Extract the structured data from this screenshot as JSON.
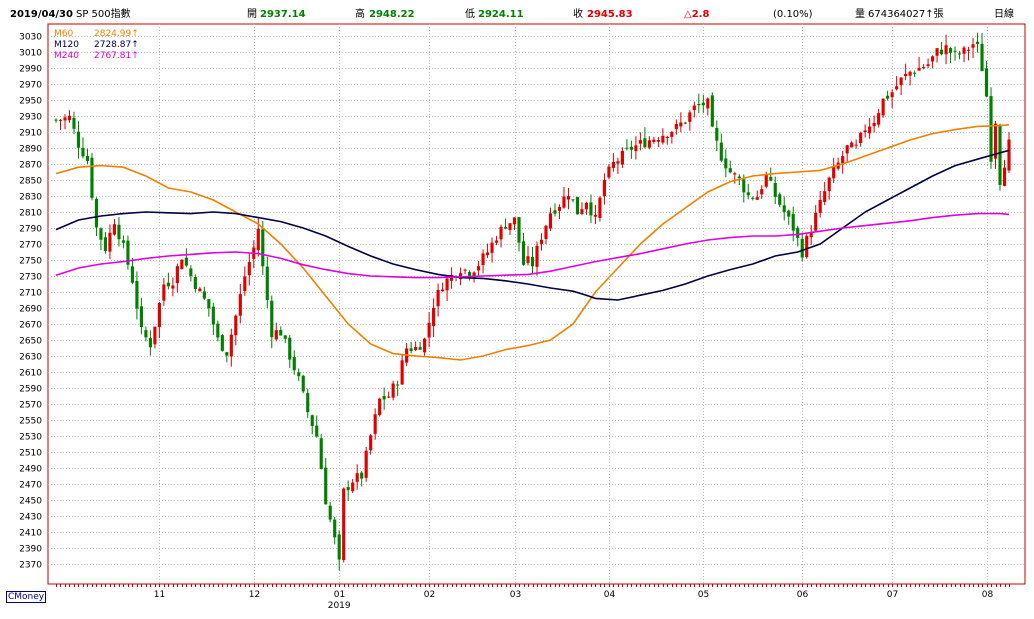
{
  "header": {
    "date": "2019/04/30",
    "symbol": "SP 500指數",
    "open_label": "開",
    "open": "2937.14",
    "high_label": "高",
    "high": "2948.22",
    "low_label": "低",
    "low": "2924.11",
    "close_label": "收",
    "close": "2945.83",
    "change": "△2.8",
    "change_pct": "(0.10%)",
    "volume_label": "量",
    "volume": "674364027↑張",
    "period": "日線"
  },
  "legend": [
    {
      "name": "M60",
      "value": "2824.99↑",
      "color": "#f08000"
    },
    {
      "name": "M120",
      "value": "2728.87↑",
      "color": "#000040"
    },
    {
      "name": "M240",
      "value": "2767.81↑",
      "color": "#e000e0"
    }
  ],
  "brand": "CMoney",
  "colors": {
    "up": "#e00000",
    "down": "#008000",
    "grid": "#b8b8b8",
    "frame": "#c00000"
  },
  "chart_data": {
    "type": "candlestick",
    "title": "SP 500指數 日線",
    "yticks": [
      2370,
      2390,
      2410,
      2430,
      2450,
      2470,
      2490,
      2510,
      2530,
      2550,
      2570,
      2590,
      2610,
      2630,
      2650,
      2670,
      2690,
      2710,
      2730,
      2750,
      2770,
      2790,
      2810,
      2830,
      2850,
      2870,
      2890,
      2910,
      2930,
      2950,
      2970,
      2990,
      3010,
      3030
    ],
    "ylim": [
      2345,
      3040
    ],
    "xlim": [
      0,
      212
    ],
    "x_month_ticks": [
      {
        "label": "11",
        "index": 23
      },
      {
        "label": "12",
        "index": 44
      },
      {
        "label": "01",
        "index": 63
      },
      {
        "label": "02",
        "index": 83
      },
      {
        "label": "03",
        "index": 102
      },
      {
        "label": "04",
        "index": 123
      },
      {
        "label": "05",
        "index": 144
      },
      {
        "label": "06",
        "index": 166
      },
      {
        "label": "07",
        "index": 186
      },
      {
        "label": "08",
        "index": 207
      }
    ],
    "year_label": {
      "label": "2019",
      "index": 63
    },
    "close_points": [
      [
        0,
        2925
      ],
      [
        3,
        2928
      ],
      [
        5,
        2895
      ],
      [
        7,
        2875
      ],
      [
        9,
        2790
      ],
      [
        11,
        2765
      ],
      [
        13,
        2800
      ],
      [
        15,
        2765
      ],
      [
        17,
        2725
      ],
      [
        19,
        2660
      ],
      [
        21,
        2645
      ],
      [
        24,
        2720
      ],
      [
        26,
        2725
      ],
      [
        28,
        2755
      ],
      [
        30,
        2730
      ],
      [
        32,
        2710
      ],
      [
        34,
        2690
      ],
      [
        36,
        2650
      ],
      [
        38,
        2635
      ],
      [
        40,
        2680
      ],
      [
        42,
        2730
      ],
      [
        44,
        2765
      ],
      [
        45,
        2790
      ],
      [
        46,
        2740
      ],
      [
        48,
        2660
      ],
      [
        50,
        2660
      ],
      [
        52,
        2630
      ],
      [
        54,
        2600
      ],
      [
        56,
        2560
      ],
      [
        58,
        2530
      ],
      [
        60,
        2450
      ],
      [
        62,
        2400
      ],
      [
        63,
        2370
      ],
      [
        64,
        2460
      ],
      [
        66,
        2475
      ],
      [
        68,
        2480
      ],
      [
        70,
        2530
      ],
      [
        72,
        2575
      ],
      [
        74,
        2580
      ],
      [
        76,
        2600
      ],
      [
        78,
        2640
      ],
      [
        80,
        2640
      ],
      [
        82,
        2650
      ],
      [
        84,
        2695
      ],
      [
        86,
        2720
      ],
      [
        88,
        2730
      ],
      [
        90,
        2740
      ],
      [
        92,
        2735
      ],
      [
        94,
        2745
      ],
      [
        96,
        2760
      ],
      [
        98,
        2780
      ],
      [
        100,
        2795
      ],
      [
        102,
        2800
      ],
      [
        104,
        2745
      ],
      [
        105,
        2748
      ],
      [
        106,
        2745
      ],
      [
        108,
        2780
      ],
      [
        110,
        2810
      ],
      [
        112,
        2820
      ],
      [
        114,
        2835
      ],
      [
        116,
        2810
      ],
      [
        118,
        2825
      ],
      [
        120,
        2800
      ],
      [
        122,
        2850
      ],
      [
        124,
        2870
      ],
      [
        126,
        2880
      ],
      [
        128,
        2890
      ],
      [
        130,
        2895
      ],
      [
        132,
        2900
      ],
      [
        134,
        2905
      ],
      [
        136,
        2910
      ],
      [
        138,
        2915
      ],
      [
        140,
        2925
      ],
      [
        142,
        2940
      ],
      [
        144,
        2945
      ],
      [
        145,
        2945
      ],
      [
        146,
        2910
      ],
      [
        148,
        2880
      ],
      [
        150,
        2860
      ],
      [
        152,
        2850
      ],
      [
        154,
        2830
      ],
      [
        156,
        2830
      ],
      [
        158,
        2855
      ],
      [
        160,
        2830
      ],
      [
        162,
        2810
      ],
      [
        164,
        2790
      ],
      [
        166,
        2760
      ],
      [
        168,
        2790
      ],
      [
        170,
        2820
      ],
      [
        172,
        2850
      ],
      [
        174,
        2870
      ],
      [
        176,
        2890
      ],
      [
        178,
        2890
      ],
      [
        180,
        2915
      ],
      [
        182,
        2925
      ],
      [
        184,
        2950
      ],
      [
        186,
        2960
      ],
      [
        188,
        2975
      ],
      [
        190,
        2985
      ],
      [
        192,
        2990
      ],
      [
        194,
        2995
      ],
      [
        196,
        3010
      ],
      [
        198,
        3015
      ],
      [
        200,
        3005
      ],
      [
        202,
        3010
      ],
      [
        204,
        3020
      ],
      [
        205,
        3015
      ],
      [
        206,
        2990
      ],
      [
        207,
        2955
      ],
      [
        208,
        2880
      ],
      [
        209,
        2925
      ],
      [
        210,
        2850
      ],
      [
        212,
        2895
      ]
    ],
    "ma_series": [
      {
        "name": "M60",
        "points": [
          [
            0,
            2858
          ],
          [
            5,
            2866
          ],
          [
            10,
            2868
          ],
          [
            15,
            2866
          ],
          [
            20,
            2855
          ],
          [
            25,
            2840
          ],
          [
            30,
            2835
          ],
          [
            35,
            2825
          ],
          [
            40,
            2810
          ],
          [
            45,
            2795
          ],
          [
            50,
            2770
          ],
          [
            55,
            2740
          ],
          [
            60,
            2705
          ],
          [
            65,
            2670
          ],
          [
            70,
            2645
          ],
          [
            75,
            2633
          ],
          [
            80,
            2630
          ],
          [
            85,
            2628
          ],
          [
            90,
            2625
          ],
          [
            95,
            2630
          ],
          [
            100,
            2638
          ],
          [
            105,
            2643
          ],
          [
            110,
            2650
          ],
          [
            115,
            2670
          ],
          [
            120,
            2710
          ],
          [
            125,
            2740
          ],
          [
            130,
            2770
          ],
          [
            135,
            2795
          ],
          [
            140,
            2815
          ],
          [
            145,
            2835
          ],
          [
            150,
            2848
          ],
          [
            155,
            2855
          ],
          [
            160,
            2858
          ],
          [
            165,
            2860
          ],
          [
            170,
            2862
          ],
          [
            175,
            2870
          ],
          [
            180,
            2880
          ],
          [
            185,
            2890
          ],
          [
            190,
            2900
          ],
          [
            195,
            2908
          ],
          [
            200,
            2913
          ],
          [
            205,
            2917
          ],
          [
            210,
            2918
          ],
          [
            212,
            2919
          ]
        ]
      },
      {
        "name": "M120",
        "points": [
          [
            0,
            2788
          ],
          [
            5,
            2800
          ],
          [
            10,
            2805
          ],
          [
            15,
            2808
          ],
          [
            20,
            2810
          ],
          [
            25,
            2809
          ],
          [
            30,
            2808
          ],
          [
            35,
            2810
          ],
          [
            40,
            2808
          ],
          [
            45,
            2803
          ],
          [
            50,
            2798
          ],
          [
            55,
            2790
          ],
          [
            60,
            2780
          ],
          [
            65,
            2767
          ],
          [
            70,
            2755
          ],
          [
            75,
            2745
          ],
          [
            80,
            2738
          ],
          [
            85,
            2732
          ],
          [
            90,
            2728
          ],
          [
            95,
            2727
          ],
          [
            100,
            2724
          ],
          [
            105,
            2720
          ],
          [
            110,
            2715
          ],
          [
            115,
            2711
          ],
          [
            118,
            2706
          ],
          [
            120,
            2702
          ],
          [
            125,
            2700
          ],
          [
            130,
            2706
          ],
          [
            135,
            2712
          ],
          [
            140,
            2720
          ],
          [
            145,
            2730
          ],
          [
            150,
            2738
          ],
          [
            155,
            2745
          ],
          [
            160,
            2755
          ],
          [
            165,
            2760
          ],
          [
            170,
            2770
          ],
          [
            175,
            2790
          ],
          [
            180,
            2810
          ],
          [
            185,
            2825
          ],
          [
            190,
            2840
          ],
          [
            195,
            2855
          ],
          [
            200,
            2868
          ],
          [
            205,
            2876
          ],
          [
            210,
            2884
          ],
          [
            212,
            2887
          ]
        ]
      },
      {
        "name": "M240",
        "points": [
          [
            0,
            2731
          ],
          [
            5,
            2740
          ],
          [
            10,
            2745
          ],
          [
            15,
            2748
          ],
          [
            20,
            2752
          ],
          [
            25,
            2755
          ],
          [
            30,
            2757
          ],
          [
            35,
            2759
          ],
          [
            40,
            2760
          ],
          [
            45,
            2758
          ],
          [
            50,
            2752
          ],
          [
            55,
            2744
          ],
          [
            60,
            2738
          ],
          [
            65,
            2733
          ],
          [
            70,
            2730
          ],
          [
            75,
            2729
          ],
          [
            80,
            2728
          ],
          [
            85,
            2728
          ],
          [
            90,
            2729
          ],
          [
            95,
            2730
          ],
          [
            100,
            2731
          ],
          [
            105,
            2732
          ],
          [
            110,
            2736
          ],
          [
            115,
            2742
          ],
          [
            120,
            2748
          ],
          [
            125,
            2753
          ],
          [
            130,
            2758
          ],
          [
            135,
            2764
          ],
          [
            140,
            2770
          ],
          [
            145,
            2775
          ],
          [
            150,
            2778
          ],
          [
            155,
            2780
          ],
          [
            160,
            2780
          ],
          [
            165,
            2782
          ],
          [
            170,
            2786
          ],
          [
            175,
            2790
          ],
          [
            180,
            2793
          ],
          [
            185,
            2796
          ],
          [
            190,
            2799
          ],
          [
            195,
            2803
          ],
          [
            200,
            2806
          ],
          [
            205,
            2808
          ],
          [
            210,
            2808
          ],
          [
            212,
            2807
          ]
        ]
      }
    ]
  }
}
